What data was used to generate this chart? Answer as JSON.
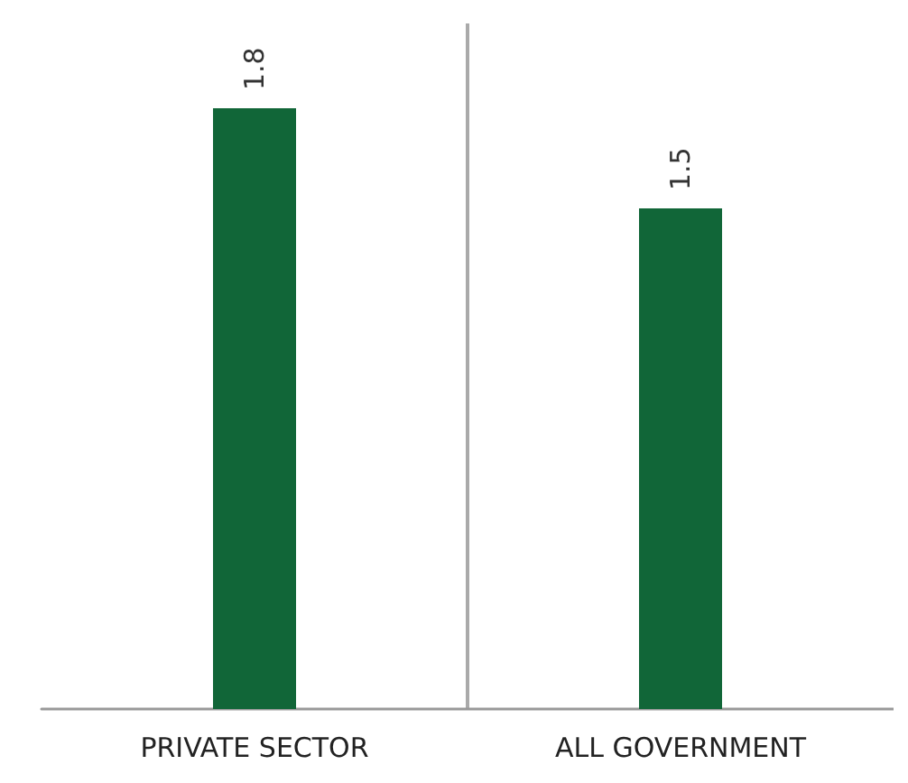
{
  "chart_data": {
    "type": "bar",
    "categories": [
      "PRIVATE SECTOR",
      "ALL GOVERNMENT"
    ],
    "values": [
      1.8,
      1.5
    ],
    "color": "#116638",
    "data_labels": true,
    "grid": "x"
  }
}
